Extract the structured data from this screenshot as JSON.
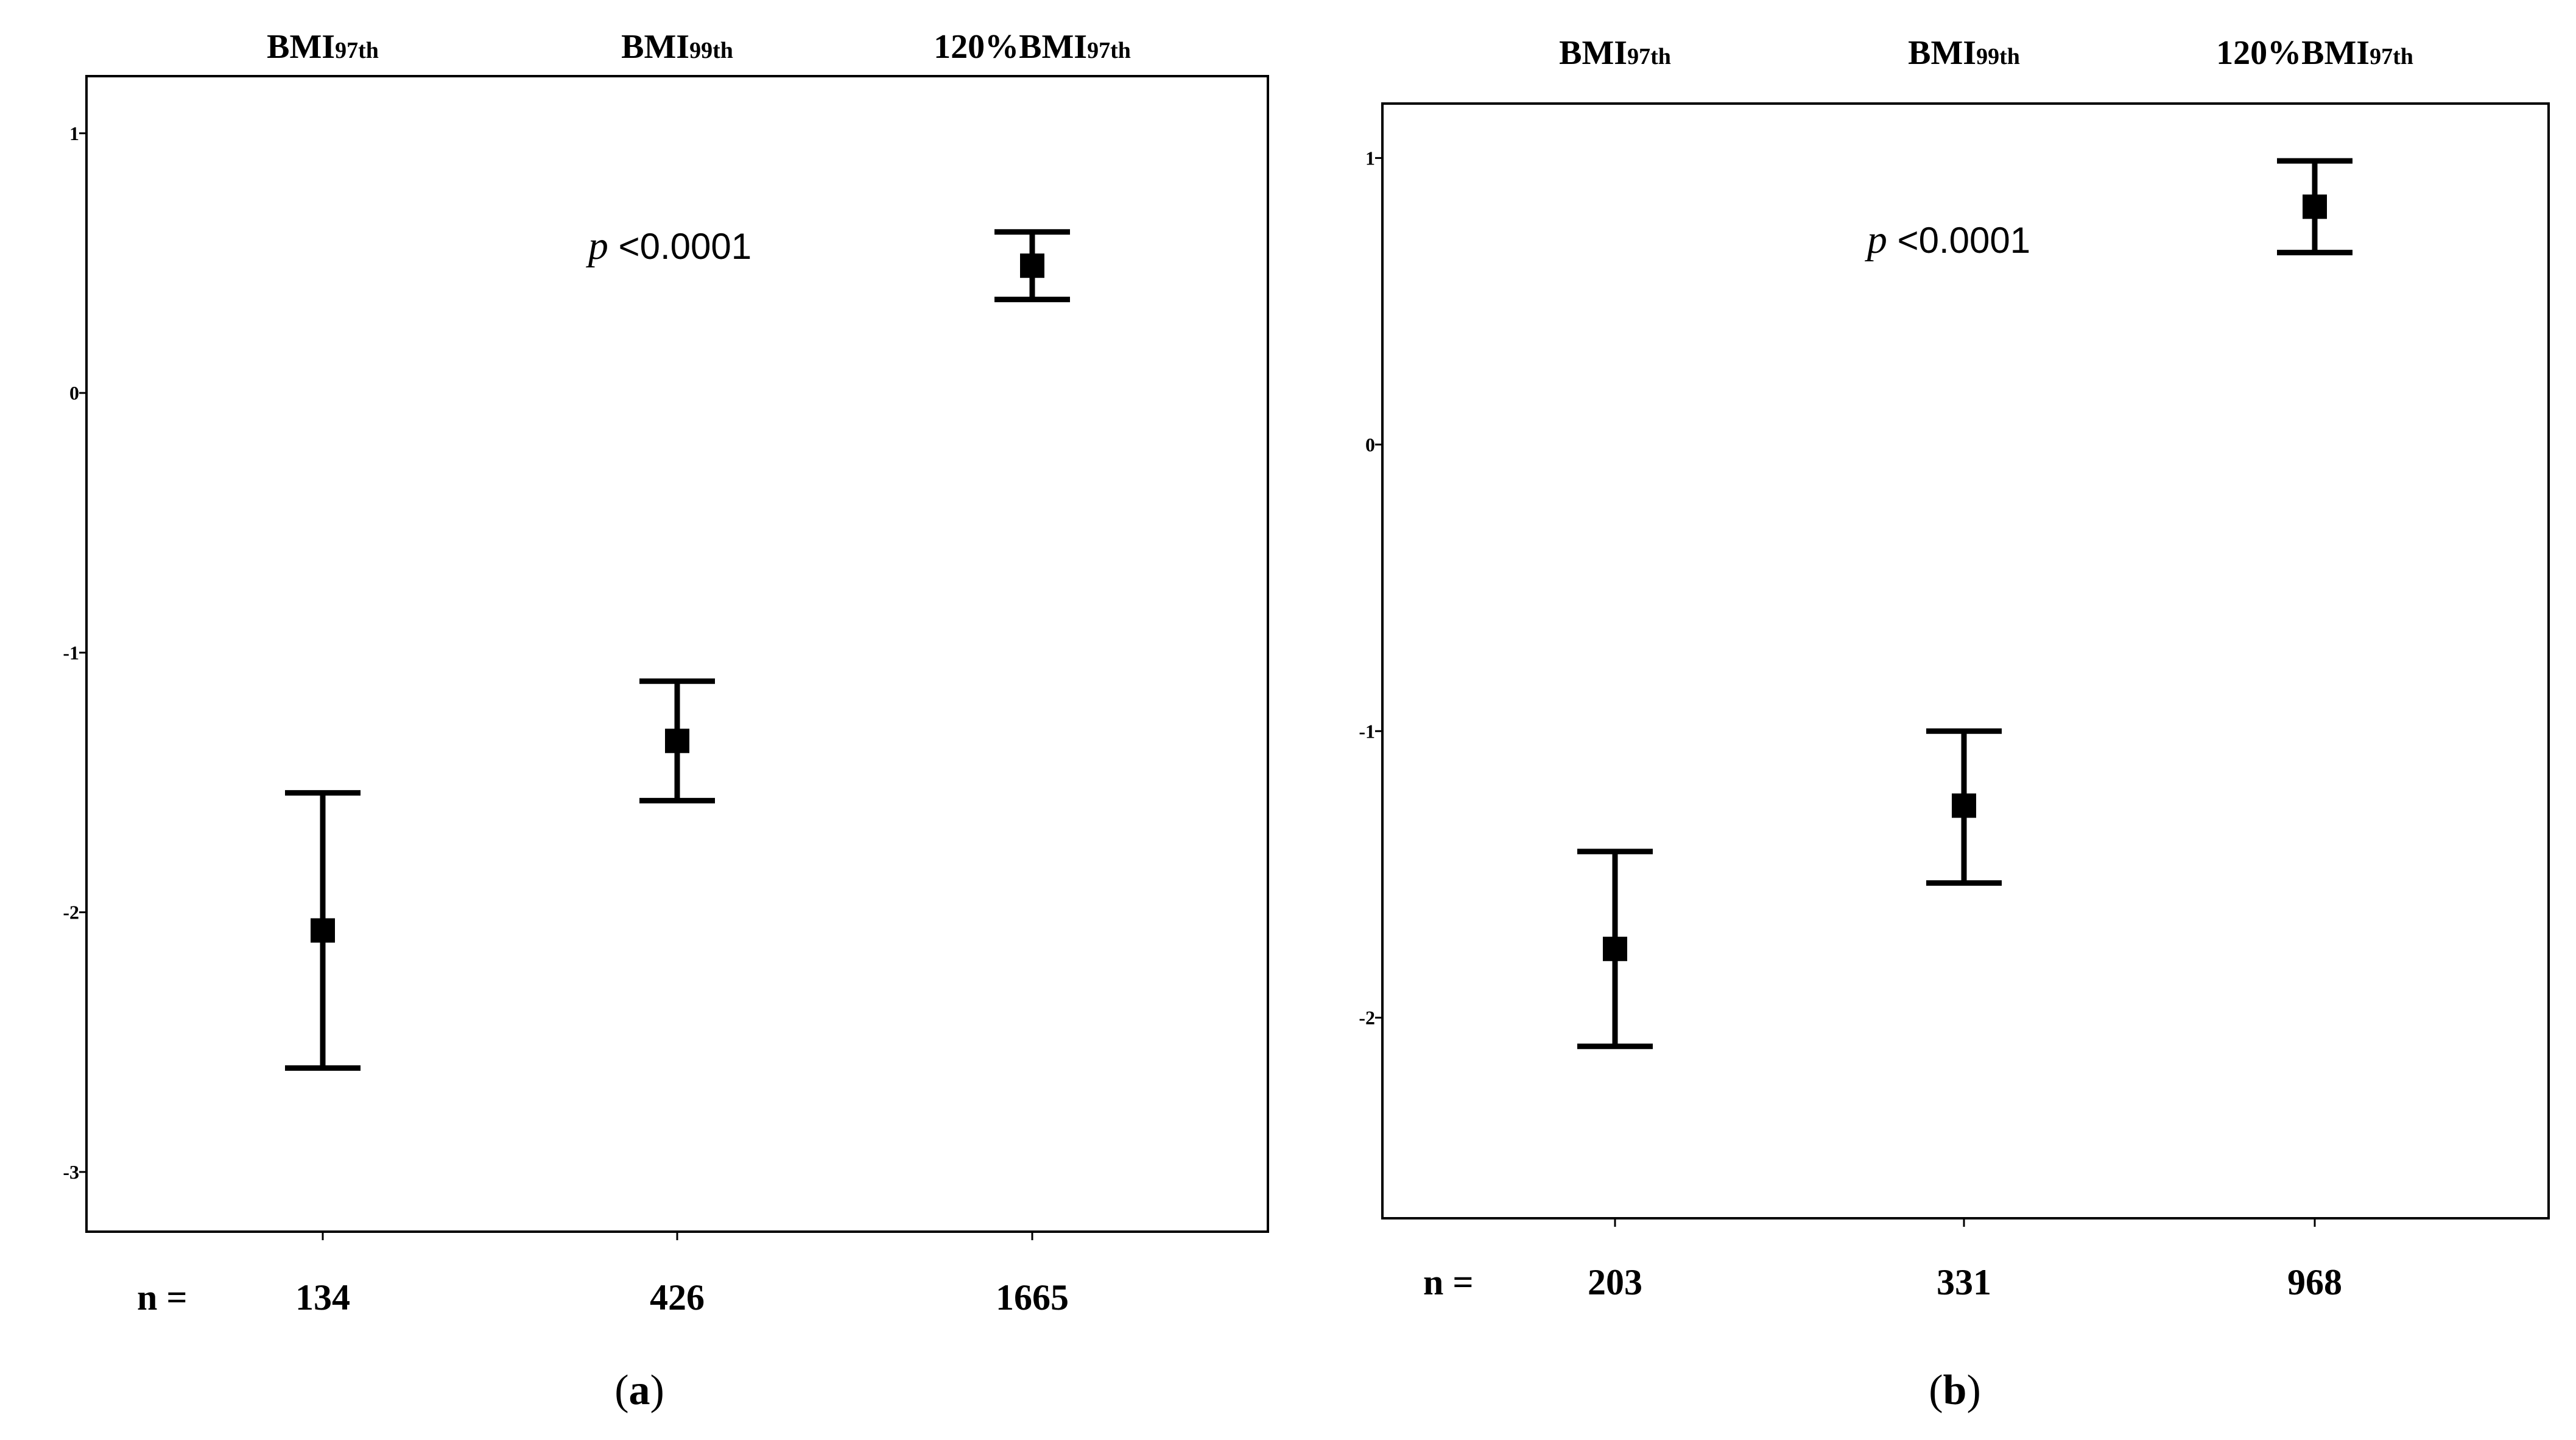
{
  "chart_data": [
    {
      "type": "errorbar",
      "panel_label": "a",
      "groups": [
        "BMI97th",
        "BMI99th",
        "120%BMI97th"
      ],
      "group_labels": [
        {
          "main": "BMI",
          "sub": "97th"
        },
        {
          "main": "BMI",
          "sub": "99th"
        },
        {
          "main": "120%BMI",
          "sub": "97th"
        }
      ],
      "n_prefix": "n =",
      "n": [
        "134",
        "426",
        "1665"
      ],
      "means": [
        -2.07,
        -1.34,
        0.49
      ],
      "lower": [
        -2.6,
        -1.57,
        0.36
      ],
      "upper": [
        -1.54,
        -1.11,
        0.62
      ],
      "yticks": [
        1,
        0,
        -1,
        -2,
        -3
      ],
      "ytick_labels": [
        "1",
        "0",
        "-1",
        "-2",
        "-3"
      ],
      "ylim": [
        -3.23,
        1.22
      ],
      "annotation": {
        "p_symbol": "p",
        "p_text": " <0.0001"
      },
      "grid": false
    },
    {
      "type": "errorbar",
      "panel_label": "b",
      "groups": [
        "BMI97th",
        "BMI99th",
        "120%BMI97th"
      ],
      "group_labels": [
        {
          "main": "BMI",
          "sub": "97th"
        },
        {
          "main": "BMI",
          "sub": "99th"
        },
        {
          "main": "120%BMI",
          "sub": "97th"
        }
      ],
      "n_prefix": "n =",
      "n": [
        "203",
        "331",
        "968"
      ],
      "means": [
        -1.76,
        -1.26,
        0.83
      ],
      "lower": [
        -2.1,
        -1.53,
        0.67
      ],
      "upper": [
        -1.42,
        -1.0,
        0.99
      ],
      "yticks": [
        1,
        0,
        -1,
        -2
      ],
      "ytick_labels": [
        "1",
        "0",
        "-1",
        "-2"
      ],
      "ylim": [
        -2.7,
        1.19
      ],
      "annotation": {
        "p_symbol": "p",
        "p_text": " <0.0001"
      },
      "grid": false
    }
  ]
}
